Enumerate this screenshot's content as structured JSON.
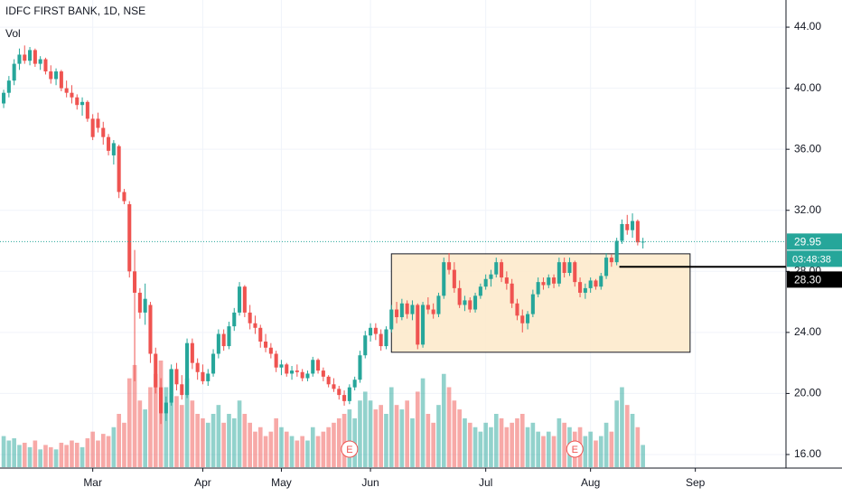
{
  "chart_data": {
    "type": "candlestick",
    "title": "IDFC FIRST BANK, 1D, NSE",
    "volume_label": "Vol",
    "up_color": "#26a69a",
    "down_color": "#ef5350",
    "grid": true,
    "xlim": [
      -0.7,
      149.3
    ],
    "ylim": [
      15.17,
      45.78
    ],
    "xticks": [
      {
        "value": 17,
        "label": "Mar"
      },
      {
        "value": 38,
        "label": "Apr"
      },
      {
        "value": 53,
        "label": "May"
      },
      {
        "value": 70,
        "label": "Jun"
      },
      {
        "value": 92,
        "label": "Jul"
      },
      {
        "value": 112,
        "label": "Aug"
      },
      {
        "value": 132,
        "label": "Sep"
      }
    ],
    "yticks": [
      {
        "value": 16,
        "label": "16.00"
      },
      {
        "value": 20,
        "label": "20.00"
      },
      {
        "value": 24,
        "label": "24.00"
      },
      {
        "value": 28,
        "label": "28.00"
      },
      {
        "value": 32,
        "label": "32.00"
      },
      {
        "value": 36,
        "label": "36.00"
      },
      {
        "value": 40,
        "label": "40.00"
      },
      {
        "value": 44,
        "label": "44.00"
      }
    ],
    "open": [
      39.0,
      39.7,
      40.5,
      41.6,
      42.2,
      41.8,
      42.5,
      41.6,
      41.9,
      41.1,
      40.6,
      41.1,
      40.0,
      39.7,
      39.4,
      38.9,
      39.1,
      38.0,
      38.0,
      37.4,
      36.8,
      35.6,
      36.2,
      33.2,
      32.4,
      28.0,
      26.6,
      25.3,
      25.8,
      22.6,
      20.4,
      18.7,
      19.4,
      21.6,
      20.6,
      19.9,
      23.3,
      22.0,
      21.4,
      20.8,
      21.3,
      22.6,
      23.9,
      23.1,
      24.4,
      25.3,
      27.0,
      25.3,
      24.6,
      24.3,
      23.4,
      23.0,
      22.6,
      21.7,
      21.9,
      21.3,
      21.5,
      21.4,
      21.0,
      21.3,
      22.2,
      21.5,
      21.1,
      20.6,
      20.3,
      19.9,
      19.5,
      20.4,
      20.9,
      22.5,
      23.8,
      24.3,
      23.9,
      23.1,
      24.2,
      25.5,
      25.0,
      25.9,
      25.2,
      25.8,
      23.2,
      25.8,
      25.5,
      25.2,
      26.4,
      28.6,
      28.1,
      26.9,
      25.8,
      26.1,
      25.5,
      26.4,
      27.0,
      27.5,
      27.8,
      28.6,
      27.6,
      27.2,
      25.9,
      25.1,
      24.6,
      25.2,
      26.5,
      27.3,
      27.1,
      27.6,
      27.2,
      28.6,
      27.9,
      28.6,
      27.3,
      26.6,
      26.9,
      27.4,
      27.0,
      27.7,
      28.9,
      28.6,
      30.0,
      31.1,
      30.7,
      31.3,
      29.9
    ],
    "high": [
      39.9,
      40.8,
      41.9,
      42.6,
      42.8,
      42.7,
      42.6,
      42.1,
      42.0,
      41.5,
      41.3,
      41.2,
      40.5,
      40.2,
      39.6,
      39.4,
      39.2,
      38.3,
      38.4,
      37.8,
      37.0,
      36.6,
      36.3,
      33.4,
      32.6,
      29.4,
      26.9,
      27.2,
      26.0,
      23.0,
      21.0,
      19.8,
      21.9,
      22.0,
      21.2,
      23.6,
      23.6,
      22.3,
      21.9,
      21.6,
      22.9,
      24.2,
      24.2,
      24.7,
      25.6,
      27.3,
      27.1,
      25.8,
      25.1,
      24.5,
      23.9,
      23.3,
      22.8,
      22.2,
      22.0,
      21.8,
      21.9,
      21.6,
      21.5,
      22.4,
      22.3,
      21.7,
      21.2,
      21.0,
      20.5,
      20.2,
      20.6,
      21.1,
      22.8,
      24.1,
      24.6,
      24.6,
      24.2,
      24.4,
      25.8,
      26.0,
      26.2,
      26.1,
      26.1,
      25.9,
      26.0,
      26.3,
      25.9,
      26.6,
      28.9,
      29.2,
      28.6,
      27.4,
      26.4,
      26.3,
      26.6,
      27.2,
      27.8,
      28.1,
      28.9,
      28.8,
      28.0,
      27.5,
      26.2,
      25.5,
      25.4,
      26.8,
      27.6,
      27.6,
      27.8,
      27.8,
      28.9,
      28.9,
      28.9,
      28.7,
      27.6,
      27.2,
      27.6,
      27.5,
      27.9,
      29.2,
      29.1,
      30.2,
      31.4,
      31.7,
      31.8,
      31.4,
      30.2
    ],
    "low": [
      38.7,
      39.4,
      40.2,
      41.2,
      41.6,
      41.5,
      41.4,
      41.2,
      40.9,
      40.3,
      40.2,
      39.8,
      39.4,
      39.0,
      38.6,
      38.2,
      37.8,
      36.6,
      37.1,
      36.3,
      35.6,
      35.0,
      32.8,
      32.4,
      27.6,
      20.8,
      24.9,
      24.5,
      22.0,
      20.0,
      18.0,
      18.2,
      19.2,
      20.2,
      19.6,
      19.7,
      21.6,
      20.9,
      20.6,
      20.5,
      21.1,
      22.3,
      22.8,
      22.9,
      24.1,
      25.1,
      25.0,
      24.2,
      23.9,
      23.0,
      22.7,
      22.3,
      21.4,
      21.2,
      21.1,
      20.9,
      21.1,
      20.8,
      20.8,
      21.1,
      21.3,
      20.8,
      20.4,
      20.1,
      19.6,
      19.2,
      19.3,
      20.2,
      20.7,
      22.3,
      23.4,
      23.5,
      22.8,
      22.9,
      24.0,
      24.6,
      24.8,
      24.9,
      24.8,
      22.9,
      23.0,
      25.2,
      24.9,
      25.0,
      26.2,
      27.8,
      26.6,
      25.6,
      25.4,
      25.3,
      25.3,
      26.2,
      26.8,
      27.0,
      27.6,
      27.3,
      26.8,
      25.6,
      24.8,
      24.0,
      24.2,
      25.0,
      26.3,
      26.8,
      26.9,
      26.9,
      27.0,
      27.6,
      27.7,
      27.0,
      26.3,
      26.2,
      26.6,
      26.8,
      26.8,
      27.5,
      28.3,
      28.4,
      29.8,
      30.4,
      30.2,
      29.7,
      29.5
    ],
    "close": [
      39.7,
      40.5,
      41.6,
      42.2,
      41.8,
      42.5,
      41.6,
      41.9,
      41.1,
      40.6,
      41.1,
      40.0,
      39.7,
      39.4,
      38.9,
      39.1,
      38.0,
      36.8,
      37.4,
      36.8,
      35.9,
      36.4,
      33.2,
      32.6,
      28.0,
      26.6,
      25.3,
      26.2,
      22.6,
      20.4,
      18.7,
      19.4,
      21.6,
      20.6,
      19.9,
      23.3,
      22.0,
      21.4,
      20.8,
      21.3,
      22.6,
      23.9,
      23.1,
      24.4,
      25.3,
      27.0,
      25.3,
      24.6,
      24.3,
      23.4,
      23.0,
      22.6,
      21.7,
      21.9,
      21.3,
      21.5,
      21.4,
      21.0,
      21.3,
      22.2,
      21.5,
      21.1,
      20.6,
      20.3,
      19.9,
      19.5,
      20.4,
      20.9,
      22.5,
      23.8,
      24.3,
      23.9,
      23.1,
      24.2,
      25.5,
      25.0,
      25.9,
      25.2,
      25.8,
      23.2,
      25.8,
      25.5,
      25.2,
      26.4,
      28.6,
      28.1,
      26.9,
      25.8,
      26.1,
      25.5,
      26.4,
      27.0,
      27.5,
      27.8,
      28.6,
      27.6,
      27.2,
      25.9,
      25.1,
      24.6,
      25.2,
      26.5,
      27.3,
      27.1,
      27.6,
      27.2,
      28.6,
      27.9,
      28.6,
      27.3,
      26.6,
      26.9,
      27.4,
      27.0,
      27.7,
      28.9,
      28.6,
      30.0,
      31.1,
      30.7,
      31.3,
      29.9,
      29.95
    ],
    "volume": [
      14,
      12,
      13,
      10,
      11,
      9,
      12,
      8,
      10,
      9,
      8,
      11,
      10,
      12,
      11,
      9,
      13,
      16,
      12,
      15,
      14,
      18,
      24,
      20,
      40,
      46,
      30,
      26,
      36,
      42,
      48,
      36,
      44,
      32,
      28,
      40,
      30,
      24,
      22,
      20,
      24,
      28,
      20,
      24,
      22,
      30,
      24,
      20,
      16,
      18,
      14,
      16,
      22,
      18,
      16,
      14,
      12,
      14,
      12,
      18,
      14,
      16,
      18,
      20,
      22,
      24,
      26,
      22,
      30,
      34,
      30,
      26,
      28,
      24,
      36,
      28,
      26,
      30,
      22,
      34,
      40,
      24,
      20,
      28,
      42,
      36,
      30,
      26,
      22,
      20,
      18,
      16,
      20,
      18,
      24,
      22,
      18,
      20,
      22,
      24,
      18,
      20,
      16,
      14,
      16,
      14,
      22,
      20,
      18,
      16,
      18,
      14,
      16,
      12,
      14,
      20,
      16,
      30,
      36,
      28,
      24,
      18,
      10
    ],
    "last_price": 29.95,
    "countdown": "03:48:38",
    "level": {
      "value": 28.3,
      "label": "28.30"
    },
    "range_box": {
      "xlim": [
        74,
        131
      ],
      "ylim": [
        22.7,
        29.15
      ],
      "color": "#fde9c9"
    },
    "earnings": [
      {
        "x": 66,
        "label": "E"
      },
      {
        "x": 109,
        "label": "E"
      }
    ]
  }
}
